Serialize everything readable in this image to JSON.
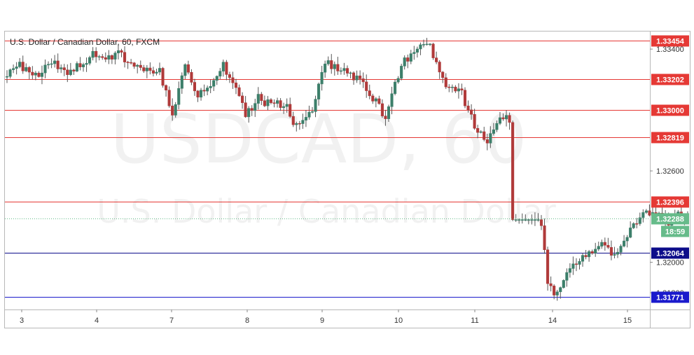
{
  "chart_data": {
    "type": "candlestick",
    "title": "U.S. Dollar / Canadian Dollar, 60, FXCM",
    "watermark": {
      "symbol": "USDCAD, 60",
      "name": "U.S. Dollar / Canadian Dollar"
    },
    "ylim": [
      1.3169,
      1.3352
    ],
    "y_ticks": [
      {
        "value": 1.334,
        "label": "1.33400"
      },
      {
        "value": 1.326,
        "label": "1.32600"
      },
      {
        "value": 1.32,
        "label": "1.32000"
      },
      {
        "value": 1.318,
        "label": "1.31800"
      }
    ],
    "x_ticks": [
      "3",
      "4",
      "7",
      "8",
      "9",
      "10",
      "11",
      "14",
      "15"
    ],
    "levels": [
      {
        "value": 1.33454,
        "label": "1.33454",
        "color": "#e53935"
      },
      {
        "value": 1.33202,
        "label": "1.33202",
        "color": "#e53935"
      },
      {
        "value": 1.33,
        "label": "1.33000",
        "color": "#e53935"
      },
      {
        "value": 1.32819,
        "label": "1.32819",
        "color": "#e53935"
      },
      {
        "value": 1.32396,
        "label": "1.32396",
        "color": "#e53935"
      },
      {
        "value": 1.32064,
        "label": "1.32064",
        "color": "#0d0d8a"
      },
      {
        "value": 1.31771,
        "label": "1.31771",
        "color": "#1a1acc"
      }
    ],
    "last_price": {
      "value": 1.32288,
      "label": "1.32288",
      "countdown": "18:59",
      "color": "#66bb8a"
    },
    "colors": {
      "up": "#3c7f6a",
      "down": "#b03a3a",
      "wick": "#555555"
    },
    "grid": false,
    "segments": [
      {
        "day": "3",
        "anchors": [
          [
            0,
            1.3322
          ],
          [
            4,
            1.333
          ],
          [
            9,
            1.3323
          ],
          [
            14,
            1.3331
          ],
          [
            19,
            1.3325
          ],
          [
            23,
            1.333
          ]
        ]
      },
      {
        "day": "4",
        "anchors": [
          [
            0,
            1.333
          ],
          [
            3,
            1.3338
          ],
          [
            7,
            1.3333
          ],
          [
            11,
            1.3337
          ],
          [
            15,
            1.3331
          ],
          [
            19,
            1.3327
          ],
          [
            23,
            1.3326
          ]
        ]
      },
      {
        "day": "7",
        "anchors": [
          [
            0,
            1.3325
          ],
          [
            4,
            1.3298
          ],
          [
            8,
            1.3332
          ],
          [
            12,
            1.331
          ],
          [
            16,
            1.3316
          ],
          [
            20,
            1.3329
          ],
          [
            23,
            1.332
          ]
        ]
      },
      {
        "day": "8",
        "anchors": [
          [
            0,
            1.3314
          ],
          [
            3,
            1.3296
          ],
          [
            7,
            1.3308
          ],
          [
            11,
            1.3303
          ],
          [
            15,
            1.3305
          ],
          [
            19,
            1.3289
          ],
          [
            23,
            1.3297
          ]
        ]
      },
      {
        "day": "9",
        "anchors": [
          [
            0,
            1.33
          ],
          [
            4,
            1.3332
          ],
          [
            8,
            1.3327
          ],
          [
            12,
            1.3322
          ],
          [
            16,
            1.3319
          ],
          [
            20,
            1.3305
          ],
          [
            23,
            1.3296
          ]
        ]
      },
      {
        "day": "10",
        "anchors": [
          [
            0,
            1.3305
          ],
          [
            4,
            1.333
          ],
          [
            8,
            1.3336
          ],
          [
            12,
            1.3346
          ],
          [
            15,
            1.333
          ],
          [
            18,
            1.3318
          ],
          [
            21,
            1.3313
          ],
          [
            23,
            1.3311
          ]
        ]
      },
      {
        "day": "11",
        "anchors": [
          [
            0,
            1.3303
          ],
          [
            3,
            1.329
          ],
          [
            7,
            1.328
          ],
          [
            11,
            1.3293
          ],
          [
            15,
            1.3295
          ],
          [
            19,
            1.3285
          ],
          [
            23,
            1.3278
          ]
        ]
      },
      {
        "day": "14",
        "anchors": [
          [
            0,
            1.3228
          ],
          [
            2,
            1.3185
          ],
          [
            5,
            1.3178
          ],
          [
            9,
            1.3195
          ],
          [
            13,
            1.3204
          ],
          [
            17,
            1.3208
          ],
          [
            20,
            1.3212
          ],
          [
            23,
            1.3205
          ]
        ]
      },
      {
        "day": "15",
        "anchors": [
          [
            0,
            1.3208
          ],
          [
            4,
            1.322
          ],
          [
            8,
            1.3234
          ],
          [
            12,
            1.3232
          ],
          [
            16,
            1.3227
          ],
          [
            19,
            1.3231
          ],
          [
            22,
            1.3229
          ]
        ]
      }
    ]
  }
}
